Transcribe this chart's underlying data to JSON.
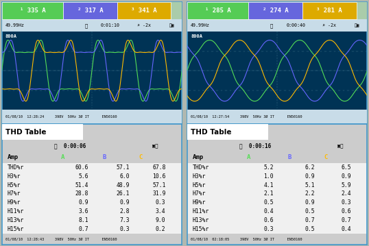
{
  "left_header": {
    "ch1": "335 A",
    "ch2": "317 A",
    "ch3": "341 A"
  },
  "right_header": {
    "ch1": "285 A",
    "ch2": "274 A",
    "ch3": "281 A"
  },
  "left_osc_info": "49.99Hz",
  "right_osc_info": "49.99Hz",
  "left_osc_time": "0:01:10",
  "right_osc_time": "0:00:40",
  "left_scale": "800A",
  "right_scale": "800A",
  "left_osc_footer": "01/08/10  12:28:24     398V  50Hz 3Ø IT      EN50160",
  "right_osc_footer": "01/08/10  12:27:54     398V  50Hz 3Ø IT      EN50160",
  "color_ch1": "#55dd55",
  "color_ch2": "#6666ff",
  "color_ch3": "#ffbb00",
  "color_colA": "#55dd55",
  "color_colB": "#6666ff",
  "color_colC": "#ffbb00",
  "bg_header_ch1": "#55cc55",
  "bg_header_ch2": "#6666dd",
  "bg_header_ch3": "#ddaa00",
  "bg_header_rest": "#aaccaa",
  "bg_osc": "#003355",
  "bg_table_title": "#cccccc",
  "bg_table_body": "#f0f0f0",
  "bg_col_header": "#cccccc",
  "border_color": "#4499cc",
  "left_thd": {
    "rows": [
      "THD%r",
      "H3%r",
      "H5%r",
      "H7%r",
      "H9%r",
      "H11%r",
      "H13%r",
      "H15%r"
    ],
    "A": [
      60.6,
      5.6,
      51.4,
      28.8,
      0.9,
      3.6,
      8.1,
      0.7
    ],
    "B": [
      57.1,
      6.0,
      48.9,
      26.1,
      0.9,
      2.8,
      7.3,
      0.3
    ],
    "C": [
      67.8,
      10.6,
      57.1,
      31.9,
      0.3,
      3.4,
      9.0,
      0.2
    ]
  },
  "right_thd": {
    "rows": [
      "THD%r",
      "H3%r",
      "H5%r",
      "H7%r",
      "H9%r",
      "H11%r",
      "H13%r",
      "H15%r"
    ],
    "A": [
      5.2,
      1.0,
      4.1,
      2.1,
      0.5,
      0.4,
      0.6,
      0.3
    ],
    "B": [
      6.2,
      0.9,
      5.1,
      2.2,
      0.9,
      0.5,
      0.7,
      0.5
    ],
    "C": [
      6.5,
      0.9,
      5.9,
      2.4,
      0.3,
      0.6,
      0.7,
      0.4
    ]
  },
  "left_thd_time": "0:00:06",
  "right_thd_time": "0:00:16",
  "left_thd_footer": "01/08/10  12:28:43     398V  50Hz 3Ø IT      EN50160",
  "right_thd_footer": "01/08/10  02:18:05     398V  50Hz 3Ø IT      EN50160"
}
